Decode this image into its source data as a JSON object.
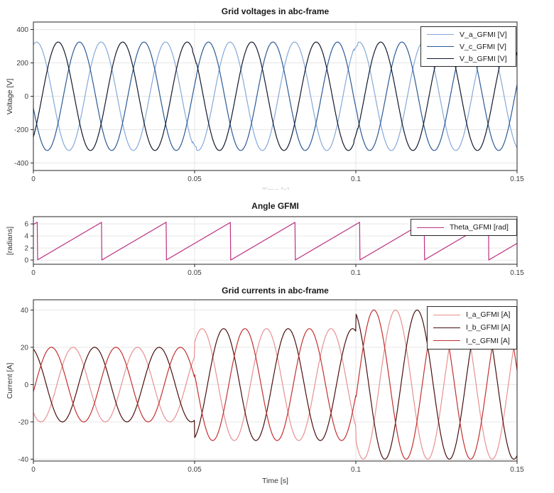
{
  "xlabel": "Time [s]",
  "clipped_xlabel": "Time [s]",
  "colors": {
    "background": "#ffffff",
    "axis": "#262626",
    "grid": "#e6e6e6",
    "tick_text": "#404040",
    "legend_border": "#2b2b2b"
  },
  "chart_data": [
    {
      "type": "line",
      "title": "Grid voltages in abc-frame",
      "ylabel": "Voltage [V]",
      "xlim": [
        0,
        0.15
      ],
      "ylim": [
        -445,
        445
      ],
      "xticks": [
        0,
        0.05,
        0.1,
        0.15
      ],
      "xtick_labels": [
        "0",
        "0.05",
        "0.1",
        "0.15"
      ],
      "yticks": [
        -400,
        -200,
        0,
        200,
        400
      ],
      "grid": true,
      "legend_position": "top-right",
      "frequency_hz": 50,
      "glitch_times": [
        0.05,
        0.1
      ],
      "glitch_scale": 0.95,
      "series": [
        {
          "name": "V_a_GFMI [V]",
          "color": "#85a8d8",
          "amplitude": 325,
          "peak_time": 0.001
        },
        {
          "name": "V_c_GFMI [V]",
          "color": "#2a5a96",
          "amplitude": 325,
          "peak_time": 0.0143
        },
        {
          "name": "V_b_GFMI [V]",
          "color": "#10182b",
          "amplitude": 325,
          "peak_time": 0.0077
        }
      ]
    },
    {
      "type": "line",
      "title": "Angle GFMI",
      "ylabel": "[radians]",
      "xlim": [
        0,
        0.15
      ],
      "ylim": [
        -0.7,
        7.2
      ],
      "xticks": [
        0,
        0.05,
        0.1,
        0.15
      ],
      "xtick_labels": [
        "0",
        "0.05",
        "0.1",
        "0.15"
      ],
      "yticks": [
        0,
        2,
        4,
        6
      ],
      "grid": true,
      "legend_position": "top-right",
      "series": [
        {
          "name": "Theta_GFMI [rad]",
          "color": "#bc3081",
          "kind": "sawtooth",
          "min": 0,
          "max": 6.2832,
          "period": 0.02,
          "first_reset": 0.0012
        }
      ]
    },
    {
      "type": "line",
      "title": "Grid currents in abc-frame",
      "ylabel": "Current [A]",
      "xlabel": "Time [s]",
      "xlim": [
        0,
        0.15
      ],
      "ylim": [
        -41,
        45.5
      ],
      "xticks": [
        0,
        0.05,
        0.1,
        0.15
      ],
      "xtick_labels": [
        "0",
        "0.05",
        "0.1",
        "0.15"
      ],
      "yticks": [
        -40,
        -20,
        0,
        20,
        40
      ],
      "grid": true,
      "legend_position": "top-right",
      "frequency_hz": 50,
      "amplitude_steps": [
        {
          "t_start": 0.0,
          "t_end": 0.05,
          "amplitude": 20
        },
        {
          "t_start": 0.05,
          "t_end": 0.1,
          "amplitude": 30
        },
        {
          "t_start": 0.1,
          "t_end": 0.15,
          "amplitude": 40
        }
      ],
      "series": [
        {
          "name": "I_a_GFMI [A]",
          "color": "#e89090",
          "peak_time": 0.0123
        },
        {
          "name": "I_b_GFMI [A]",
          "color": "#4a0f0f",
          "peak_time": 0.019
        },
        {
          "name": "I_c_GFMI [A]",
          "color": "#c33030",
          "peak_time": 0.0056
        }
      ]
    }
  ]
}
